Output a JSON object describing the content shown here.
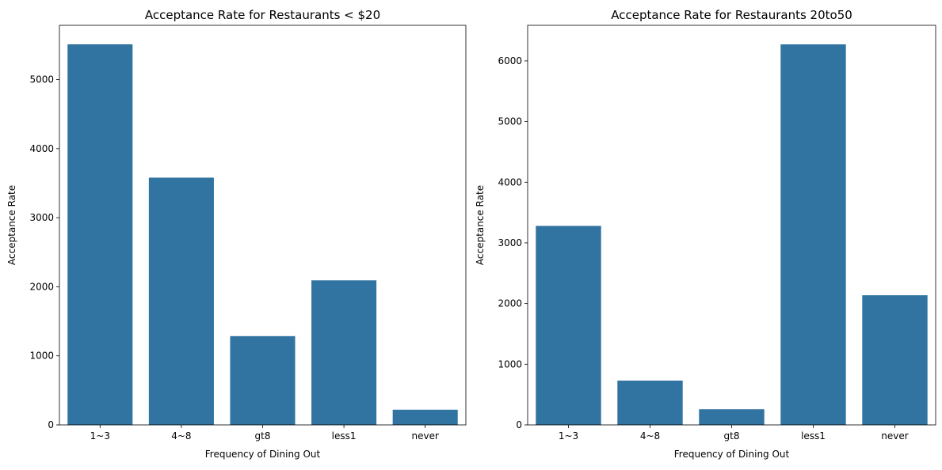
{
  "figure": {
    "background": "#ffffff",
    "bar_color": "#3274a1"
  },
  "chart_data": [
    {
      "type": "bar",
      "title": "Acceptance Rate for Restaurants < $20",
      "xlabel": "Frequency of Dining Out",
      "ylabel": "Acceptance Rate",
      "categories": [
        "1~3",
        "4~8",
        "gt8",
        "less1",
        "never"
      ],
      "values": [
        5510,
        3580,
        1285,
        2093,
        220
      ],
      "ylim": [
        0,
        5785
      ],
      "yticks": [
        0,
        1000,
        2000,
        3000,
        4000,
        5000
      ],
      "grid": false,
      "legend": "none"
    },
    {
      "type": "bar",
      "title": "Acceptance Rate for Restaurants $20 to $50",
      "title_display": "Acceptance Rate for Restaurants 20to50",
      "xlabel": "Frequency of Dining Out",
      "ylabel": "Acceptance Rate",
      "categories": [
        "1~3",
        "4~8",
        "gt8",
        "less1",
        "never"
      ],
      "values": [
        3280,
        730,
        258,
        6272,
        2137
      ],
      "ylim": [
        0,
        6586
      ],
      "yticks": [
        0,
        1000,
        2000,
        3000,
        4000,
        5000,
        6000
      ],
      "grid": false,
      "legend": "none"
    }
  ]
}
